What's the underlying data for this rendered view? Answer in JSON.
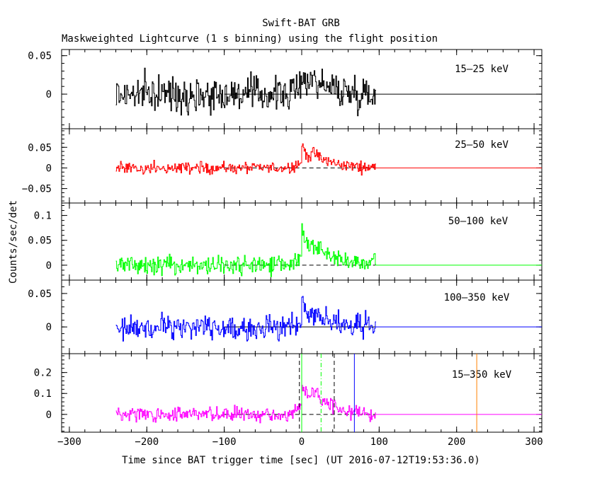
{
  "chart_data": {
    "type": "line",
    "title": "Swift-BAT GRB",
    "subtitle": "Maskweighted Lightcurve (1 s binning) using the flight position",
    "xlabel": "Time since BAT trigger time [sec] (UT 2016-07-12T19:53:36.0)",
    "ylabel": "Counts/sec/det",
    "xlim": [
      -310,
      310
    ],
    "x_ticks": [
      -300,
      -200,
      -100,
      0,
      100,
      200,
      300
    ],
    "x_tick_labels": [
      "−300",
      "−200",
      "−100",
      "0",
      "100",
      "200",
      "300"
    ],
    "data_time_range": [
      -240,
      95
    ],
    "panels": [
      {
        "band": "15–25 keV",
        "color": "#000000",
        "ylim": [
          -0.045,
          0.058
        ],
        "y_ticks": [
          0,
          0.05
        ],
        "y_tick_labels": [
          "0",
          "0.05"
        ],
        "noise": 0.011,
        "pre_level": 0.0,
        "peak": 0.028,
        "baseline_dashed": false
      },
      {
        "band": "25–50 keV",
        "color": "#ff0000",
        "ylim": [
          -0.085,
          0.095
        ],
        "y_ticks": [
          -0.05,
          0,
          0.05
        ],
        "y_tick_labels": [
          "−0.05",
          "0",
          "0.05"
        ],
        "noise": 0.007,
        "pre_level": 0.0,
        "peak": 0.05,
        "baseline_dashed": true
      },
      {
        "band": "50–100 keV",
        "color": "#00ff00",
        "ylim": [
          -0.03,
          0.125
        ],
        "y_ticks": [
          0,
          0.05,
          0.1
        ],
        "y_tick_labels": [
          "0",
          "0.05",
          "0.1"
        ],
        "noise": 0.009,
        "pre_level": 0.0,
        "peak": 0.065,
        "baseline_dashed": true
      },
      {
        "band": "100–350 keV",
        "color": "#0000ff",
        "ylim": [
          -0.04,
          0.07
        ],
        "y_ticks": [
          0,
          0.05
        ],
        "y_tick_labels": [
          "0",
          "0.05"
        ],
        "noise": 0.009,
        "pre_level": 0.0,
        "peak": 0.03,
        "baseline_dashed": false
      },
      {
        "band": "15–350 keV",
        "color": "#ff00ff",
        "ylim": [
          -0.085,
          0.29
        ],
        "y_ticks": [
          0,
          0.1,
          0.2
        ],
        "y_tick_labels": [
          "0",
          "0.1",
          "0.2"
        ],
        "noise": 0.018,
        "pre_level": 0.0,
        "peak": 0.15,
        "baseline_dashed": true
      }
    ],
    "markers": [
      {
        "x": -3,
        "color": "#000000",
        "style": "dashed"
      },
      {
        "x": 0,
        "color": "#00ff00",
        "style": "solid"
      },
      {
        "x": 25,
        "color": "#00ff00",
        "style": "dashdot"
      },
      {
        "x": 42,
        "color": "#000000",
        "style": "dashed"
      },
      {
        "x": 68,
        "color": "#0000ff",
        "style": "solid"
      },
      {
        "x": 226,
        "color": "#ff8000",
        "style": "solid"
      }
    ]
  }
}
